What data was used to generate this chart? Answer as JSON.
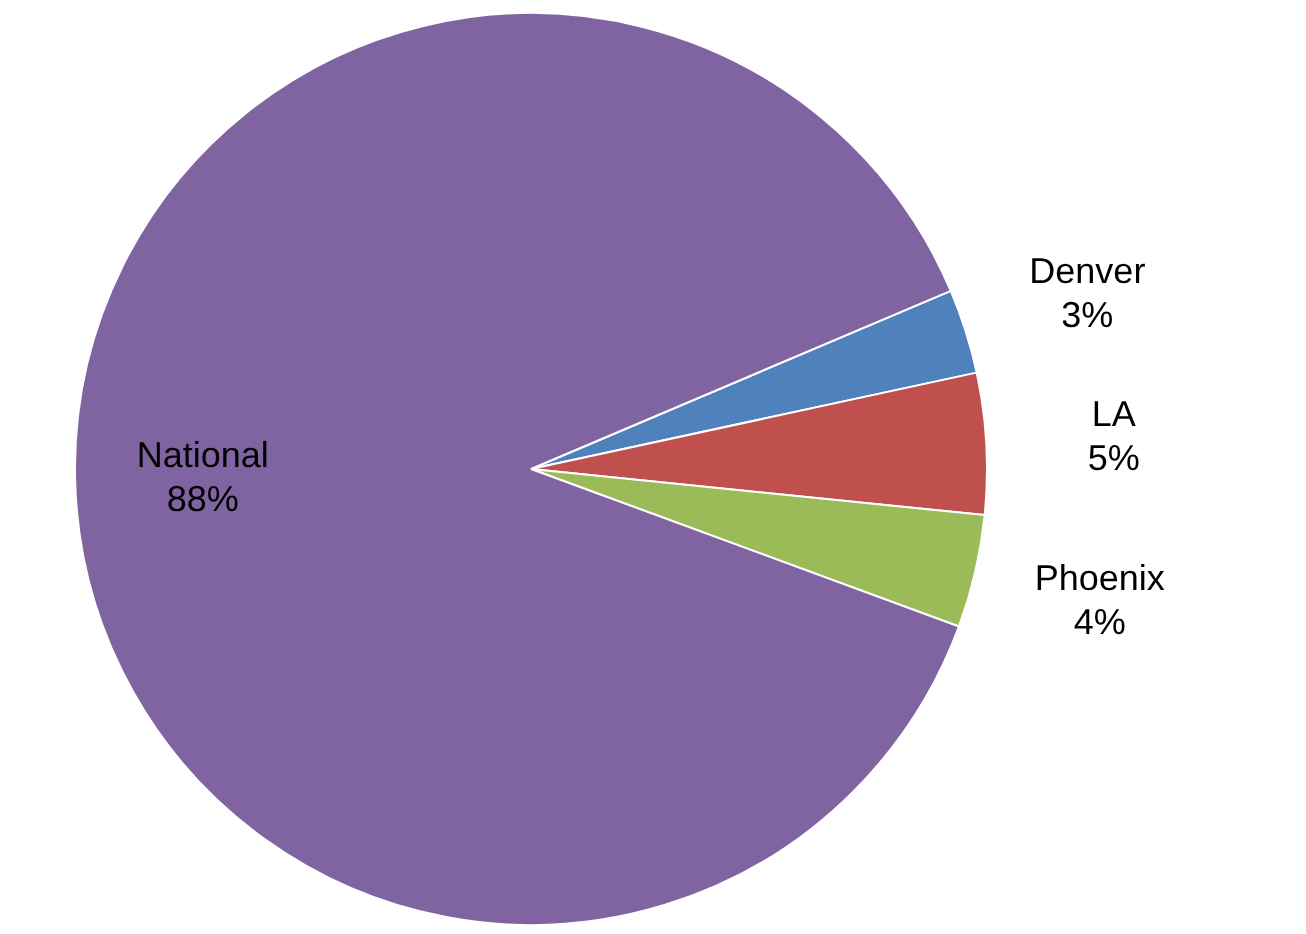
{
  "chart_data": {
    "type": "pie",
    "categories": [
      "Denver",
      "LA",
      "Phoenix",
      "National"
    ],
    "values": [
      3,
      5,
      4,
      88
    ],
    "value_labels": [
      "3%",
      "5%",
      "4%",
      "88%"
    ],
    "colors": [
      "#4f81bd",
      "#c0504d",
      "#9bbb59",
      "#8064a2"
    ]
  }
}
